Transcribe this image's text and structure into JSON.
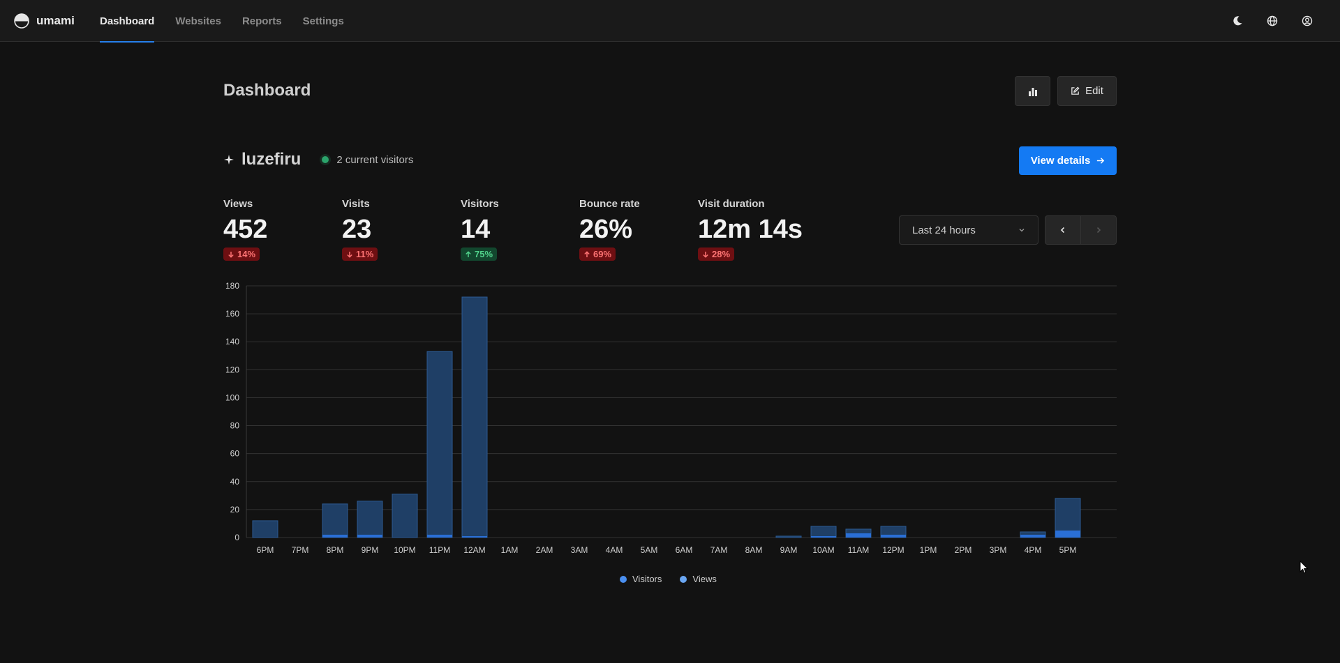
{
  "brand": {
    "name": "umami"
  },
  "nav": {
    "items": [
      "Dashboard",
      "Websites",
      "Reports",
      "Settings"
    ]
  },
  "header": {
    "title": "Dashboard",
    "edit_label": "Edit"
  },
  "website": {
    "name": "luzefiru",
    "live_text": "2 current visitors",
    "view_details_label": "View details"
  },
  "metrics": [
    {
      "label": "Views",
      "value": "452",
      "change": "14%",
      "direction": "down",
      "tone": "negative"
    },
    {
      "label": "Visits",
      "value": "23",
      "change": "11%",
      "direction": "down",
      "tone": "negative"
    },
    {
      "label": "Visitors",
      "value": "14",
      "change": "75%",
      "direction": "up",
      "tone": "positive"
    },
    {
      "label": "Bounce rate",
      "value": "26%",
      "change": "69%",
      "direction": "up",
      "tone": "negative"
    },
    {
      "label": "Visit duration",
      "value": "12m 14s",
      "change": "28%",
      "direction": "down",
      "tone": "negative"
    }
  ],
  "date_range": {
    "selected": "Last 24 hours"
  },
  "colors": {
    "accent": "#2680eb",
    "visitors": "#2a6fd6",
    "views": "#1f3f66",
    "live": "#2ba36b"
  },
  "chart_data": {
    "type": "bar",
    "categories": [
      "6PM",
      "7PM",
      "8PM",
      "9PM",
      "10PM",
      "11PM",
      "12AM",
      "1AM",
      "2AM",
      "3AM",
      "4AM",
      "5AM",
      "6AM",
      "7AM",
      "8AM",
      "9AM",
      "10AM",
      "11AM",
      "12PM",
      "1PM",
      "2PM",
      "3PM",
      "4PM",
      "5PM"
    ],
    "series": [
      {
        "name": "Visitors",
        "values": [
          0,
          0,
          2,
          2,
          0,
          2,
          1,
          0,
          0,
          0,
          0,
          0,
          0,
          0,
          0,
          0,
          1,
          3,
          2,
          0,
          0,
          0,
          2,
          5
        ]
      },
      {
        "name": "Views",
        "values": [
          12,
          0,
          24,
          26,
          31,
          133,
          172,
          0,
          0,
          0,
          0,
          0,
          0,
          0,
          0,
          1,
          8,
          6,
          8,
          0,
          0,
          0,
          4,
          28
        ]
      }
    ],
    "yticks": [
      "0",
      "20",
      "40",
      "60",
      "80",
      "100",
      "120",
      "140",
      "160",
      "180"
    ],
    "ylim": [
      0,
      180
    ],
    "grid": true,
    "stacked": true,
    "legend_position": "bottom"
  }
}
